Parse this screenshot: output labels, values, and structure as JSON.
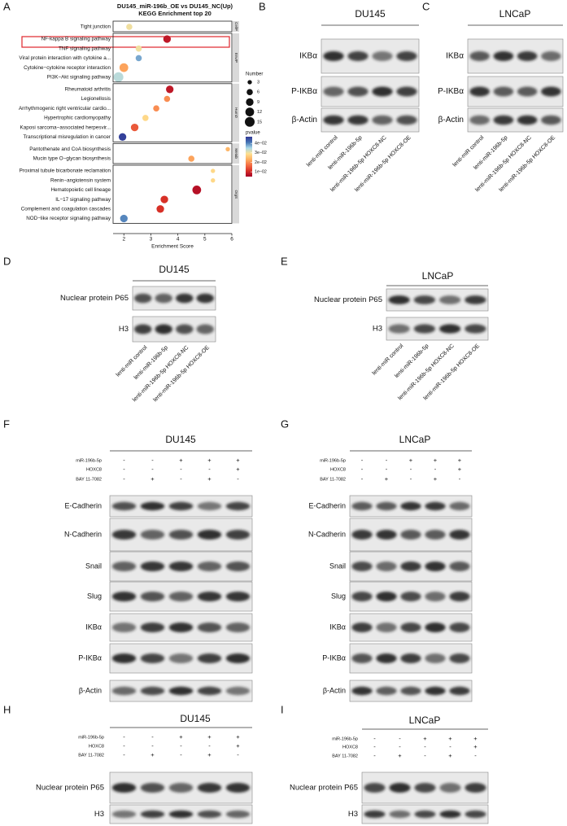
{
  "chart_data": {
    "type": "scatter",
    "panel": "A",
    "title": "DU145_miR-196b_OE vs DU145_NC(Up)",
    "subtitle": "KEGG Enrichment top 20",
    "x_label": "Enrichment Score",
    "xlim": [
      1.6,
      6
    ],
    "xticks": [
      2,
      3,
      4,
      5,
      6
    ],
    "groups": [
      {
        "name": "CellP",
        "categories": [
          "Tight junction"
        ],
        "values": [
          2.2
        ],
        "sizes": [
          6
        ],
        "pvalues": [
          0.03
        ]
      },
      {
        "name": "EnvIP",
        "categories": [
          "NF-kappa B signaling pathway",
          "TNF signaling pathway",
          "Viral protein interaction with cytokine a...",
          "Cytokine−cytokine receptor interaction",
          "PI3K−Akt signaling pathway"
        ],
        "values": [
          3.6,
          2.55,
          2.55,
          2.0,
          1.8
        ],
        "sizes": [
          9,
          6,
          6,
          12,
          15
        ],
        "pvalues": [
          0.008,
          0.03,
          0.038,
          0.022,
          0.034
        ]
      },
      {
        "name": "HumD",
        "categories": [
          "Rheumatoid arthritis",
          "Legionellosis",
          "Arrhythmogenic right ventricular cardio...",
          "Hypertrophic cardiomyopathy",
          "Kaposi sarcoma−associated herpesvir...",
          "Transcriptional misregulation in cancer"
        ],
        "values": [
          3.7,
          3.6,
          3.2,
          2.8,
          2.4,
          1.95
        ],
        "sizes": [
          9,
          6,
          6,
          6,
          9,
          9
        ],
        "pvalues": [
          0.008,
          0.02,
          0.02,
          0.028,
          0.015,
          0.046
        ]
      },
      {
        "name": "Metab",
        "categories": [
          "Pantothenate and CoA biosynthesis",
          "Mucin type O−glycan biosynthesis"
        ],
        "values": [
          5.85,
          4.5
        ],
        "sizes": [
          3,
          6
        ],
        "pvalues": [
          0.024,
          0.022
        ]
      },
      {
        "name": "OrgS",
        "categories": [
          "Proximal tubule bicarbonate reclamation",
          "Renin−angiotensin system",
          "Hematopoietic cell lineage",
          "IL−17 signaling pathway",
          "Complement and coagulation cascades",
          "NOD−like receptor signaling pathway"
        ],
        "values": [
          5.3,
          5.3,
          4.7,
          3.5,
          3.35,
          2.0
        ],
        "sizes": [
          3,
          3,
          12,
          9,
          9,
          9
        ],
        "pvalues": [
          0.028,
          0.028,
          0.007,
          0.011,
          0.011,
          0.04
        ]
      }
    ],
    "size_legend": {
      "title": "Number",
      "values": [
        3,
        6,
        9,
        12,
        15
      ]
    },
    "color_legend": {
      "title": "pvalue",
      "clim": [
        0.005,
        0.047
      ],
      "ticks": [
        {
          "value": 0.04,
          "label": "4e−02"
        },
        {
          "value": 0.03,
          "label": "3e−02"
        },
        {
          "value": 0.02,
          "label": "2e−02"
        },
        {
          "value": 0.01,
          "label": "1e−02"
        }
      ],
      "colormap": [
        "#a50026",
        "#d73027",
        "#f46d43",
        "#fdae61",
        "#fee090",
        "#abd9e9",
        "#4575b4",
        "#313695"
      ]
    }
  },
  "blots": [
    {
      "letter": "B",
      "title": "DU145",
      "rows": [
        "IKBα",
        "P-IKBα",
        "β-Actin"
      ],
      "lanes": [
        "lenti-miR control",
        "lenti-miR-196b-5p",
        "lenti-miR-196b-5p HOXC8-NC",
        "lenti-miR-196b-5p HOXC8-OE"
      ]
    },
    {
      "letter": "C",
      "title": "LNCaP",
      "rows": [
        "IKBα",
        "P-IKBα",
        "β-Actin"
      ],
      "lanes": [
        "lenti-miR control",
        "lenti-miR-196b-5p",
        "lenti-miR-196b-5p HOXC8-NC",
        "lenti-miR-196b-5p HOXC8-OE"
      ]
    },
    {
      "letter": "D",
      "title": "DU145",
      "rows": [
        "Nuclear protein P65",
        "H3"
      ],
      "lanes": [
        "lenti-miR control",
        "lenti-miR-196b-5p",
        "lenti-miR-196b-5p HOXC8-NC",
        "lenti-miR-196b-5p HOXC8-OE"
      ]
    },
    {
      "letter": "E",
      "title": "LNCaP",
      "rows": [
        "Nuclear protein P65",
        "H3"
      ],
      "lanes": [
        "lenti-miR control",
        "lenti-miR-196b-5p",
        "lenti-miR-196b-5p HOXC8-NC",
        "lenti-miR-196b-5p HOXC8-OE"
      ]
    },
    {
      "letter": "F",
      "title": "DU145",
      "rows": [
        "E-Cadherin",
        "N-Cadherin",
        "Snail",
        "Slug",
        "IKBα",
        "P-IKBα",
        "β-Actin"
      ],
      "conditions": [
        {
          "label": "miR-196b-5p",
          "marks": [
            "-",
            "-",
            "+",
            "+",
            "+"
          ]
        },
        {
          "label": "HOXC8",
          "marks": [
            "-",
            "-",
            "-",
            "-",
            "+"
          ]
        },
        {
          "label": "BAY 11-7082",
          "marks": [
            "-",
            "+",
            "-",
            "+",
            "-"
          ]
        }
      ]
    },
    {
      "letter": "G",
      "title": "LNCaP",
      "rows": [
        "E-Cadherin",
        "N-Cadherin",
        "Snail",
        "Slug",
        "IKBα",
        "P-IKBα",
        "β-Actin"
      ],
      "conditions": [
        {
          "label": "miR-196b-5p",
          "marks": [
            "-",
            "-",
            "+",
            "+",
            "+"
          ]
        },
        {
          "label": "HOXC8",
          "marks": [
            "-",
            "-",
            "-",
            "-",
            "+"
          ]
        },
        {
          "label": "BAY 11-7082",
          "marks": [
            "-",
            "+",
            "-",
            "+",
            "-"
          ]
        }
      ]
    },
    {
      "letter": "H",
      "title": "DU145",
      "rows": [
        "Nuclear protein P65",
        "H3"
      ],
      "conditions": [
        {
          "label": "miR-196b-5p",
          "marks": [
            "-",
            "-",
            "+",
            "+",
            "+"
          ]
        },
        {
          "label": "HOXC8",
          "marks": [
            "-",
            "-",
            "-",
            "-",
            "+"
          ]
        },
        {
          "label": "BAY 11-7082",
          "marks": [
            "-",
            "+",
            "-",
            "+",
            "-"
          ]
        }
      ]
    },
    {
      "letter": "I",
      "title": "LNCaP",
      "rows": [
        "Nuclear protein P65",
        "H3"
      ],
      "conditions": [
        {
          "label": "miR-196b-5p",
          "marks": [
            "-",
            "-",
            "+",
            "+",
            "+"
          ]
        },
        {
          "label": "HOXC8",
          "marks": [
            "-",
            "-",
            "-",
            "-",
            "+"
          ]
        },
        {
          "label": "BAY 11-7082",
          "marks": [
            "-",
            "+",
            "-",
            "+",
            "-"
          ]
        }
      ]
    }
  ]
}
